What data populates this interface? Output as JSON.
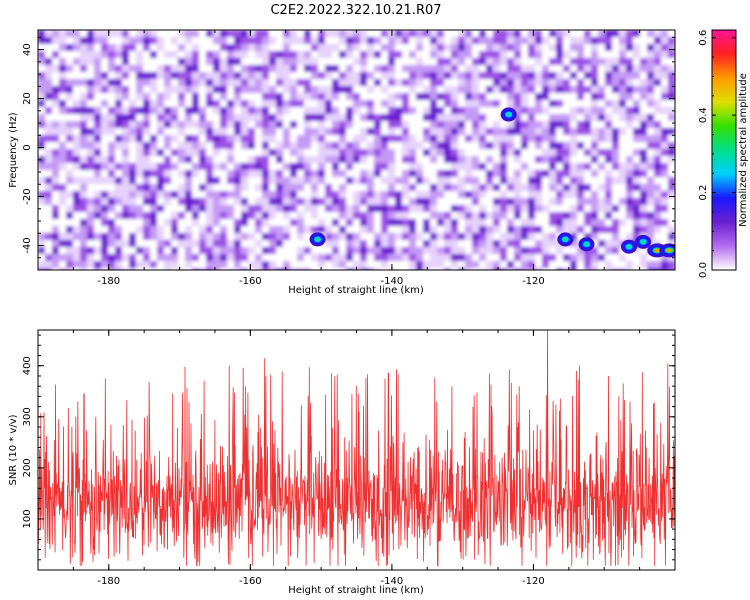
{
  "title": "C2E2.2022.322.10.21.R07",
  "chart_data": [
    {
      "type": "heatmap",
      "xlabel": "Height of straight line (km)",
      "ylabel": "Frequency (Hz)",
      "xlim": [
        -190,
        -100
      ],
      "ylim": [
        -50,
        48
      ],
      "x_ticks": [
        -180,
        -160,
        -140,
        -120
      ],
      "y_ticks": [
        -40,
        -20,
        0,
        20,
        40
      ],
      "colorbar": {
        "label": "Normalized spectral amplitude",
        "range": [
          0.0,
          0.62
        ],
        "ticks": [
          0.0,
          0.2,
          0.4,
          0.6
        ],
        "colors": [
          "#ffffff",
          "#b36bf0",
          "#6a1fd0",
          "#1a1aff",
          "#00cfff",
          "#00e08a",
          "#33e000",
          "#e0e000",
          "#ff9a00",
          "#ff2020",
          "#ff1493"
        ]
      },
      "peaks": [
        {
          "x": -123.5,
          "y": 13.5,
          "value": 0.2
        },
        {
          "x": -150.5,
          "y": -37.5,
          "value": 0.12
        },
        {
          "x": -115.5,
          "y": -37.5,
          "value": 0.2
        },
        {
          "x": -112.5,
          "y": -39.5,
          "value": 0.12
        },
        {
          "x": -106.5,
          "y": -40.5,
          "value": 0.2
        },
        {
          "x": -104.5,
          "y": -38.5,
          "value": 0.12
        },
        {
          "x": -102.5,
          "y": -42.0,
          "value": 0.52
        },
        {
          "x": -100.8,
          "y": -42.0,
          "value": 0.5
        }
      ]
    },
    {
      "type": "line",
      "xlabel": "Height of straight line (km)",
      "ylabel": "SNR (10 * v/v)",
      "xlim": [
        -190,
        -100
      ],
      "ylim": [
        0,
        470
      ],
      "x_ticks": [
        -180,
        -160,
        -140,
        -120
      ],
      "y_ticks": [
        100,
        200,
        300,
        400
      ],
      "series": [
        {
          "color": "#f03030",
          "baseline_mean": 130,
          "peaks": [
            {
              "x": -183.5,
              "y": 345
            },
            {
              "x": -171.0,
              "y": 345
            },
            {
              "x": -163.0,
              "y": 400
            },
            {
              "x": -158.0,
              "y": 415
            },
            {
              "x": -148.5,
              "y": 385
            },
            {
              "x": -141.0,
              "y": 375
            },
            {
              "x": -131.5,
              "y": 360
            },
            {
              "x": -122.0,
              "y": 360
            },
            {
              "x": -118.0,
              "y": 470
            },
            {
              "x": -113.5,
              "y": 400
            },
            {
              "x": -101.0,
              "y": 405
            }
          ]
        }
      ]
    }
  ]
}
